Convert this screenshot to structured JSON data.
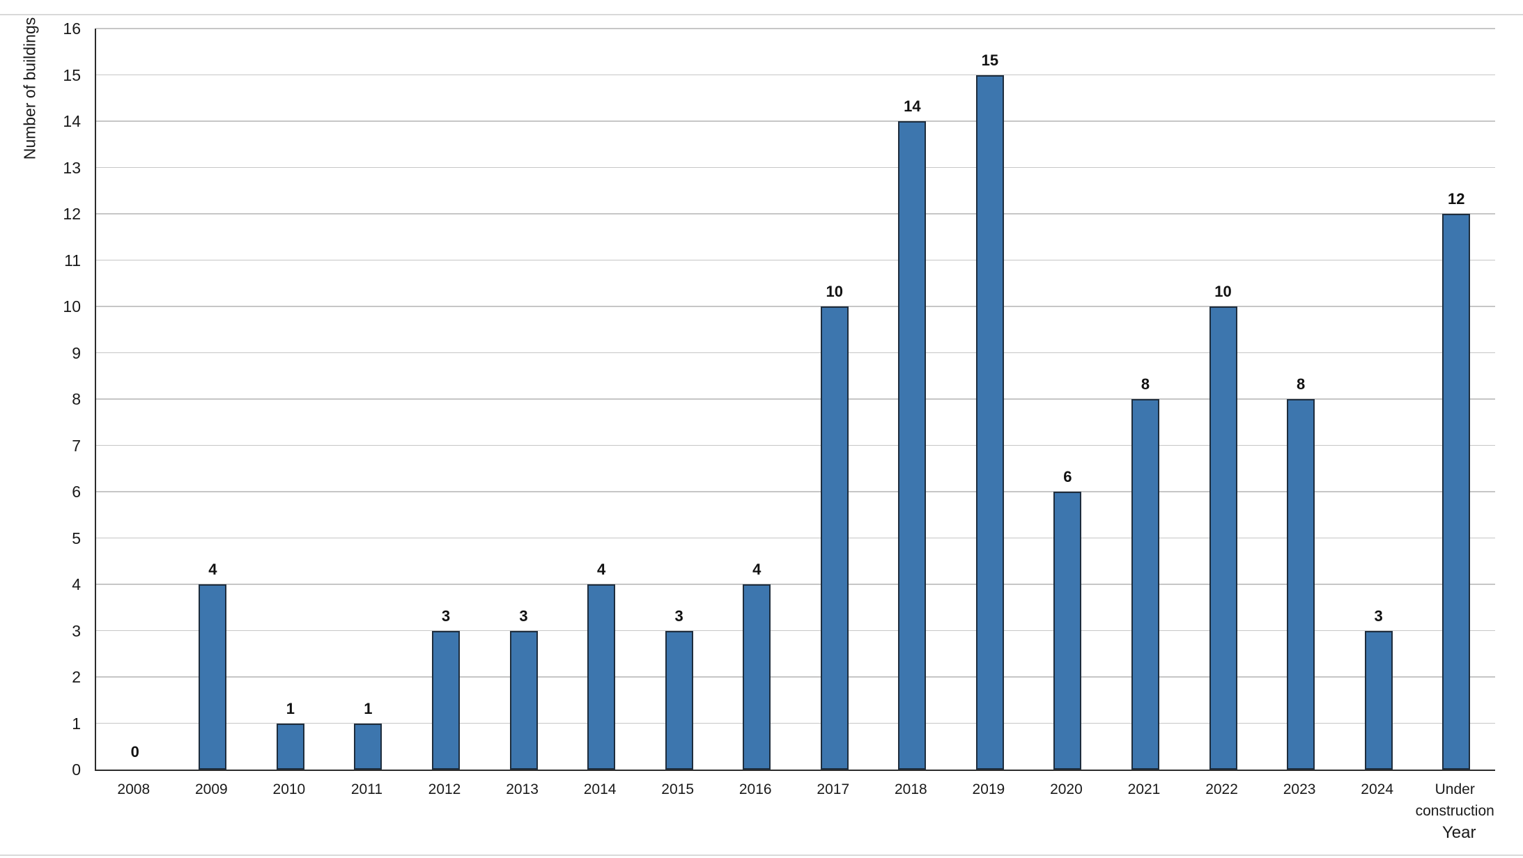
{
  "chart_data": {
    "type": "bar",
    "title": "",
    "categories": [
      "2008",
      "2009",
      "2010",
      "2011",
      "2012",
      "2013",
      "2014",
      "2015",
      "2016",
      "2017",
      "2018",
      "2019",
      "2020",
      "2021",
      "2022",
      "2023",
      "2024",
      "Under construction"
    ],
    "values": [
      0,
      4,
      1,
      1,
      3,
      3,
      4,
      3,
      4,
      10,
      14,
      15,
      6,
      8,
      10,
      8,
      3,
      12
    ],
    "xlabel": "Year",
    "ylabel": "Number of buildings",
    "ylim": [
      0,
      16
    ],
    "ytick_step": 1,
    "yticks": [
      0,
      1,
      2,
      3,
      4,
      5,
      6,
      7,
      8,
      9,
      10,
      11,
      12,
      13,
      14,
      15,
      16
    ],
    "grid": "horizontal",
    "legend": "none",
    "data_labels": true,
    "colors": {
      "bar_fill": "#3D76AE",
      "bar_border": "#1E2D3D",
      "gridline": "#C6C6C6",
      "axis_line": "#2B2B2B",
      "text": "#1A1A1A"
    }
  }
}
